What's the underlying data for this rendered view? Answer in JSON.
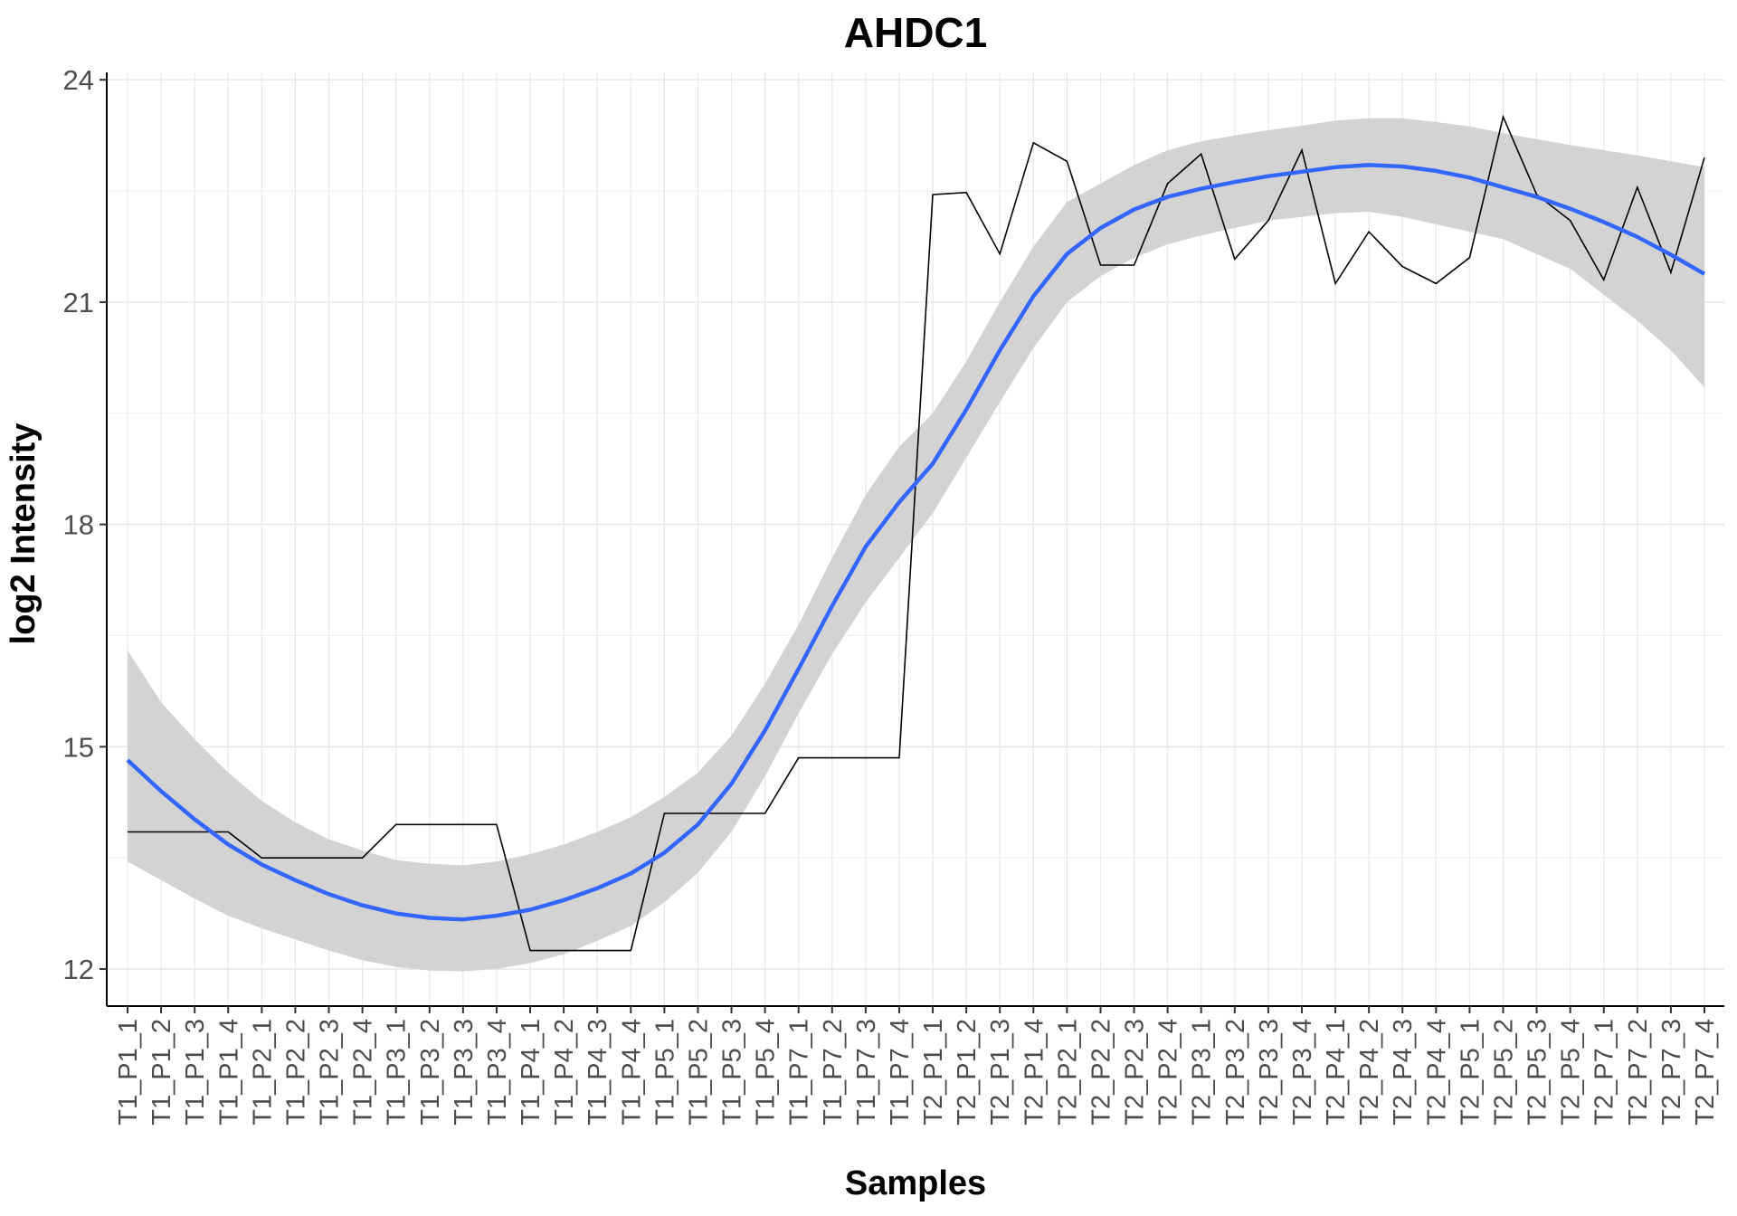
{
  "chart_data": {
    "type": "line",
    "title": "AHDC1",
    "xlabel": "Samples",
    "ylabel": "log2 Intensity",
    "ylim": [
      11.5,
      24.1
    ],
    "yticks": [
      12,
      15,
      18,
      21,
      24
    ],
    "grid": true,
    "categories": [
      "T1_P1_1",
      "T1_P1_2",
      "T1_P1_3",
      "T1_P1_4",
      "T1_P2_1",
      "T1_P2_2",
      "T1_P2_3",
      "T1_P2_4",
      "T1_P3_1",
      "T1_P3_2",
      "T1_P3_3",
      "T1_P3_4",
      "T1_P4_1",
      "T1_P4_2",
      "T1_P4_3",
      "T1_P4_4",
      "T1_P5_1",
      "T1_P5_2",
      "T1_P5_3",
      "T1_P5_4",
      "T1_P7_1",
      "T1_P7_2",
      "T1_P7_3",
      "T1_P7_4",
      "T2_P1_1",
      "T2_P1_2",
      "T2_P1_3",
      "T2_P1_4",
      "T2_P2_1",
      "T2_P2_2",
      "T2_P2_3",
      "T2_P2_4",
      "T2_P3_1",
      "T2_P3_2",
      "T2_P3_3",
      "T2_P3_4",
      "T2_P4_1",
      "T2_P4_2",
      "T2_P4_3",
      "T2_P4_4",
      "T2_P5_1",
      "T2_P5_2",
      "T2_P5_3",
      "T2_P5_4",
      "T2_P7_1",
      "T2_P7_2",
      "T2_P7_3",
      "T2_P7_4"
    ],
    "series": [
      {
        "color": "#000000",
        "values": [
          13.85,
          13.85,
          13.85,
          13.85,
          13.5,
          13.5,
          13.5,
          13.5,
          13.95,
          13.95,
          13.95,
          13.95,
          12.25,
          12.25,
          12.25,
          12.25,
          14.1,
          14.1,
          14.1,
          14.1,
          14.85,
          14.85,
          14.85,
          14.85,
          22.45,
          22.48,
          21.65,
          23.15,
          22.9,
          21.5,
          21.5,
          22.6,
          23.0,
          21.58,
          22.1,
          23.05,
          21.25,
          21.95,
          21.48,
          21.25,
          21.6,
          23.5,
          22.45,
          22.1,
          21.3,
          22.55,
          21.4,
          22.95
        ]
      }
    ],
    "smooth": {
      "color": "#3366FF",
      "band_color": "#d3d3d3",
      "fit": [
        14.82,
        14.4,
        14.02,
        13.68,
        13.41,
        13.2,
        13.01,
        12.86,
        12.75,
        12.69,
        12.67,
        12.72,
        12.8,
        12.93,
        13.09,
        13.29,
        13.57,
        13.95,
        14.5,
        15.22,
        16.05,
        16.9,
        17.7,
        18.3,
        18.82,
        19.55,
        20.35,
        21.08,
        21.65,
        22.0,
        22.25,
        22.42,
        22.53,
        22.62,
        22.7,
        22.76,
        22.82,
        22.85,
        22.83,
        22.77,
        22.68,
        22.55,
        22.42,
        22.26,
        22.08,
        21.88,
        21.64,
        21.38
      ],
      "lower": [
        13.45,
        13.2,
        12.95,
        12.72,
        12.55,
        12.4,
        12.25,
        12.12,
        12.03,
        11.98,
        11.97,
        12.0,
        12.08,
        12.2,
        12.38,
        12.58,
        12.9,
        13.3,
        13.85,
        14.6,
        15.45,
        16.25,
        16.95,
        17.55,
        18.15,
        18.9,
        19.65,
        20.38,
        21.0,
        21.35,
        21.6,
        21.78,
        21.9,
        22.0,
        22.1,
        22.15,
        22.2,
        22.22,
        22.15,
        22.05,
        21.95,
        21.85,
        21.65,
        21.45,
        21.1,
        20.75,
        20.35,
        19.85
      ],
      "upper": [
        16.3,
        15.6,
        15.1,
        14.65,
        14.27,
        13.98,
        13.75,
        13.6,
        13.47,
        13.42,
        13.4,
        13.45,
        13.55,
        13.68,
        13.85,
        14.05,
        14.32,
        14.65,
        15.15,
        15.85,
        16.65,
        17.55,
        18.4,
        19.05,
        19.5,
        20.2,
        21.0,
        21.75,
        22.35,
        22.6,
        22.85,
        23.05,
        23.17,
        23.25,
        23.32,
        23.38,
        23.45,
        23.48,
        23.48,
        23.43,
        23.37,
        23.28,
        23.2,
        23.12,
        23.05,
        22.98,
        22.9,
        22.82
      ]
    }
  }
}
